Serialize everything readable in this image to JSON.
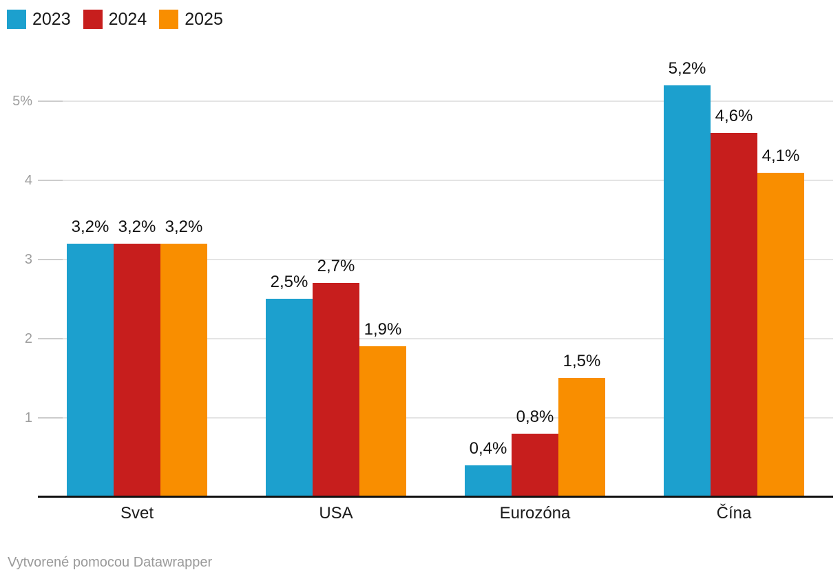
{
  "chart_data": {
    "type": "bar",
    "categories": [
      "Svet",
      "USA",
      "Eurozóna",
      "Čína"
    ],
    "series": [
      {
        "name": "2023",
        "color": "#1CA0CE",
        "values": [
          3.2,
          2.5,
          0.4,
          5.2
        ],
        "labels": [
          "3,2%",
          "2,5%",
          "0,4%",
          "5,2%"
        ]
      },
      {
        "name": "2024",
        "color": "#C71E1D",
        "values": [
          3.2,
          2.7,
          0.8,
          4.6
        ],
        "labels": [
          "3,2%",
          "2,7%",
          "0,8%",
          "4,6%"
        ]
      },
      {
        "name": "2025",
        "color": "#F98E00",
        "values": [
          3.2,
          1.9,
          1.5,
          4.1
        ],
        "labels": [
          "3,2%",
          "1,9%",
          "1,5%",
          "4,1%"
        ]
      }
    ],
    "y_axis": {
      "ticks": [
        1,
        2,
        3,
        4,
        5
      ],
      "tick_labels": [
        "1",
        "2",
        "3",
        "4",
        "5%"
      ],
      "min": 0,
      "max": 5,
      "grid": true
    },
    "legend_position": "top-left",
    "value_labels_shown": true
  },
  "footer": {
    "credit": "Vytvorené pomocou Datawrapper"
  }
}
